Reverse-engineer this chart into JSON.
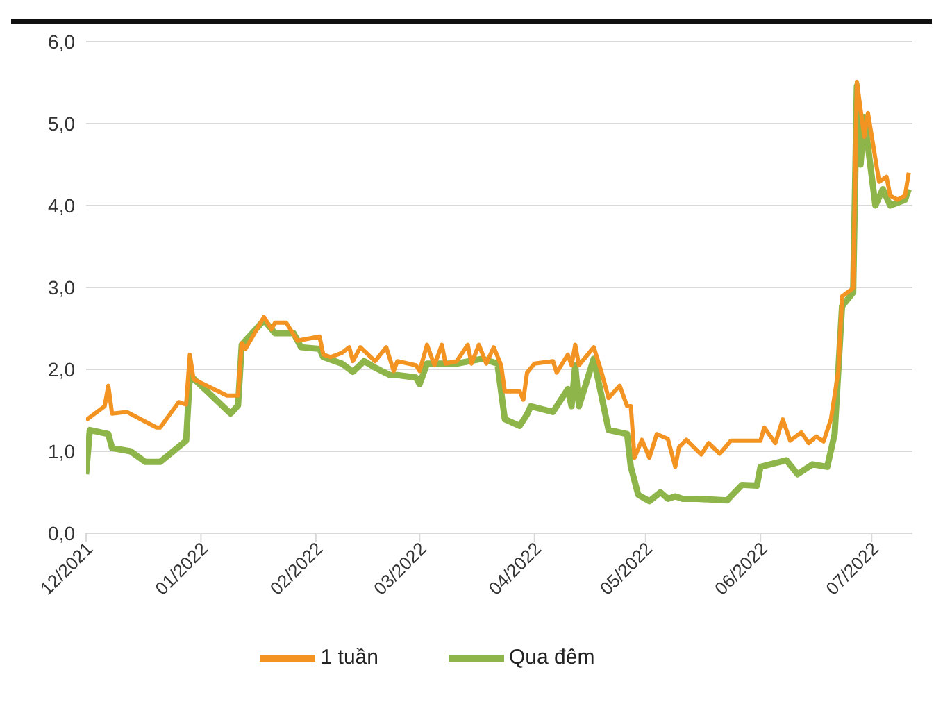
{
  "chart_data": {
    "type": "line",
    "xlim": [
      "2021-12-01",
      "2022-07-12"
    ],
    "xticks": [
      {
        "value": "2021-12-01",
        "label": "12/2021"
      },
      {
        "value": "2022-01-01",
        "label": "01/2022"
      },
      {
        "value": "2022-02-01",
        "label": "02/2022"
      },
      {
        "value": "2022-03-01",
        "label": "03/2022"
      },
      {
        "value": "2022-04-01",
        "label": "04/2022"
      },
      {
        "value": "2022-05-01",
        "label": "05/2022"
      },
      {
        "value": "2022-06-01",
        "label": "06/2022"
      },
      {
        "value": "2022-07-01",
        "label": "07/2022"
      }
    ],
    "ylim": [
      0,
      6
    ],
    "yticks": [
      {
        "value": 0,
        "label": "0,0"
      },
      {
        "value": 1,
        "label": "1,0"
      },
      {
        "value": 2,
        "label": "2,0"
      },
      {
        "value": 3,
        "label": "3,0"
      },
      {
        "value": 4,
        "label": "4,0"
      },
      {
        "value": 5,
        "label": "5,0"
      },
      {
        "value": 6,
        "label": "6,0"
      }
    ],
    "grid": "y",
    "legend": "bottom",
    "marker": "none",
    "line_style": "solid",
    "series": [
      {
        "name": "Qua đêm",
        "color": "#8db54a",
        "x": [
          "2021-12-01",
          "2021-12-02",
          "2021-12-07",
          "2021-12-08",
          "2021-12-13",
          "2021-12-17",
          "2021-12-21",
          "2021-12-28",
          "2021-12-29",
          "2022-01-09",
          "2022-01-11",
          "2022-01-12",
          "2022-01-18",
          "2022-01-21",
          "2022-01-26",
          "2022-01-28",
          "2022-02-02",
          "2022-02-03",
          "2022-02-08",
          "2022-02-11",
          "2022-02-14",
          "2022-02-17",
          "2022-02-21",
          "2022-02-23",
          "2022-02-28",
          "2022-03-01",
          "2022-03-03",
          "2022-03-11",
          "2022-03-18",
          "2022-03-22",
          "2022-03-24",
          "2022-03-28",
          "2022-03-30",
          "2022-03-31",
          "2022-04-06",
          "2022-04-10",
          "2022-04-11",
          "2022-04-12",
          "2022-04-13",
          "2022-04-17",
          "2022-04-21",
          "2022-04-26",
          "2022-04-27",
          "2022-04-29",
          "2022-05-02",
          "2022-05-05",
          "2022-05-07",
          "2022-05-09",
          "2022-05-11",
          "2022-05-15",
          "2022-05-23",
          "2022-05-24",
          "2022-05-27",
          "2022-05-31",
          "2022-06-01",
          "2022-06-08",
          "2022-06-11",
          "2022-06-15",
          "2022-06-19",
          "2022-06-21",
          "2022-06-23",
          "2022-06-26",
          "2022-06-27",
          "2022-06-28",
          "2022-06-29",
          "2022-07-02",
          "2022-07-04",
          "2022-07-06",
          "2022-07-10",
          "2022-07-11"
        ],
        "values": [
          0.72,
          1.26,
          1.21,
          1.04,
          1.0,
          0.87,
          0.87,
          1.13,
          1.93,
          1.46,
          1.56,
          2.3,
          2.6,
          2.44,
          2.44,
          2.27,
          2.25,
          2.15,
          2.07,
          1.97,
          2.1,
          2.02,
          1.93,
          1.93,
          1.9,
          1.82,
          2.07,
          2.07,
          2.13,
          2.07,
          1.39,
          1.31,
          1.45,
          1.55,
          1.48,
          1.76,
          1.55,
          2.05,
          1.55,
          2.13,
          1.26,
          1.21,
          0.81,
          0.47,
          0.39,
          0.5,
          0.42,
          0.45,
          0.42,
          0.42,
          0.4,
          0.45,
          0.59,
          0.58,
          0.81,
          0.89,
          0.72,
          0.84,
          0.81,
          1.21,
          2.77,
          2.94,
          5.46,
          4.5,
          5.08,
          4.0,
          4.2,
          4.0,
          4.07,
          4.2
        ]
      },
      {
        "name": "1 tuần",
        "color": "#f39321",
        "x": [
          "2021-12-01",
          "2021-12-06",
          "2021-12-07",
          "2021-12-08",
          "2021-12-12",
          "2021-12-20",
          "2021-12-21",
          "2021-12-26",
          "2021-12-28",
          "2021-12-29",
          "2021-12-30",
          "2022-01-08",
          "2022-01-11",
          "2022-01-12",
          "2022-01-13",
          "2022-01-18",
          "2022-01-20",
          "2022-01-21",
          "2022-01-24",
          "2022-01-27",
          "2022-02-02",
          "2022-02-03",
          "2022-02-05",
          "2022-02-08",
          "2022-02-10",
          "2022-02-11",
          "2022-02-13",
          "2022-02-17",
          "2022-02-20",
          "2022-02-22",
          "2022-02-23",
          "2022-02-28",
          "2022-03-01",
          "2022-03-03",
          "2022-03-05",
          "2022-03-07",
          "2022-03-08",
          "2022-03-11",
          "2022-03-14",
          "2022-03-15",
          "2022-03-17",
          "2022-03-19",
          "2022-03-21",
          "2022-03-23",
          "2022-03-24",
          "2022-03-28",
          "2022-03-29",
          "2022-03-30",
          "2022-04-01",
          "2022-04-06",
          "2022-04-07",
          "2022-04-10",
          "2022-04-11",
          "2022-04-12",
          "2022-04-13",
          "2022-04-17",
          "2022-04-19",
          "2022-04-21",
          "2022-04-24",
          "2022-04-26",
          "2022-04-27",
          "2022-04-28",
          "2022-04-30",
          "2022-05-02",
          "2022-05-04",
          "2022-05-07",
          "2022-05-09",
          "2022-05-10",
          "2022-05-12",
          "2022-05-16",
          "2022-05-18",
          "2022-05-21",
          "2022-05-24",
          "2022-06-01",
          "2022-06-02",
          "2022-06-05",
          "2022-06-07",
          "2022-06-09",
          "2022-06-12",
          "2022-06-14",
          "2022-06-16",
          "2022-06-18",
          "2022-06-20",
          "2022-06-22",
          "2022-06-23",
          "2022-06-26",
          "2022-06-27",
          "2022-06-29",
          "2022-06-30",
          "2022-07-03",
          "2022-07-05",
          "2022-07-06",
          "2022-07-08",
          "2022-07-10",
          "2022-07-11"
        ],
        "values": [
          1.38,
          1.55,
          1.8,
          1.46,
          1.48,
          1.29,
          1.29,
          1.6,
          1.57,
          2.18,
          1.88,
          1.68,
          1.68,
          2.32,
          2.25,
          2.64,
          2.49,
          2.57,
          2.57,
          2.35,
          2.4,
          2.18,
          2.15,
          2.2,
          2.27,
          2.1,
          2.27,
          2.1,
          2.27,
          1.98,
          2.1,
          2.05,
          1.98,
          2.3,
          2.05,
          2.3,
          2.07,
          2.1,
          2.3,
          2.07,
          2.3,
          2.07,
          2.27,
          2.05,
          1.73,
          1.73,
          1.63,
          1.96,
          2.07,
          2.1,
          1.96,
          2.18,
          2.05,
          2.3,
          2.05,
          2.27,
          1.98,
          1.65,
          1.8,
          1.55,
          1.55,
          0.92,
          1.14,
          0.92,
          1.21,
          1.15,
          0.81,
          1.05,
          1.14,
          0.96,
          1.1,
          0.97,
          1.13,
          1.13,
          1.29,
          1.1,
          1.39,
          1.13,
          1.23,
          1.1,
          1.18,
          1.12,
          1.39,
          1.98,
          2.89,
          2.99,
          5.51,
          4.84,
          5.13,
          4.29,
          4.35,
          4.12,
          4.07,
          4.12,
          4.4
        ]
      }
    ]
  }
}
